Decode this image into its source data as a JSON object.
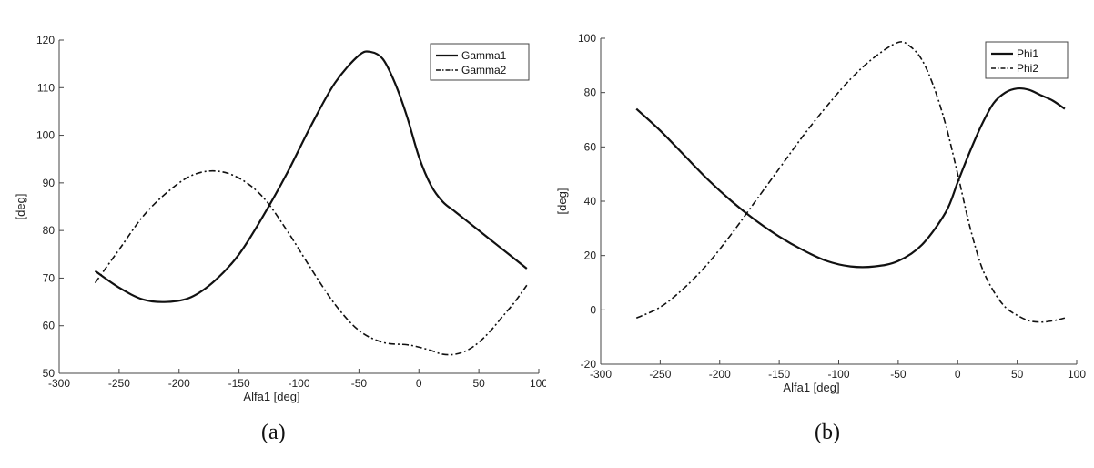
{
  "chart_data": [
    {
      "type": "line",
      "caption": "(a)",
      "xlabel": "Alfa1 [deg]",
      "ylabel": "[deg]",
      "xlim": [
        -300,
        100
      ],
      "ylim": [
        50,
        120
      ],
      "xticks": [
        -300,
        -250,
        -200,
        -150,
        -100,
        -50,
        0,
        50,
        100
      ],
      "yticks": [
        50,
        60,
        70,
        80,
        90,
        100,
        110,
        120
      ],
      "grid": false,
      "legend": "top-right",
      "series": [
        {
          "name": "Gamma1",
          "style": "solid",
          "x": [
            -270,
            -250,
            -230,
            -210,
            -190,
            -170,
            -150,
            -130,
            -110,
            -90,
            -70,
            -50,
            -40,
            -30,
            -20,
            -10,
            0,
            10,
            20,
            30,
            40,
            50,
            60,
            70,
            80,
            90
          ],
          "y": [
            71.5,
            68,
            65.5,
            65,
            66,
            69.5,
            75,
            83,
            92,
            102,
            111,
            116.8,
            117.5,
            116,
            111,
            104,
            95.5,
            89.5,
            86,
            84,
            82,
            80,
            78,
            76,
            74,
            72
          ]
        },
        {
          "name": "Gamma2",
          "style": "dashdot",
          "x": [
            -270,
            -250,
            -230,
            -210,
            -190,
            -170,
            -150,
            -130,
            -110,
            -90,
            -70,
            -50,
            -30,
            -10,
            0,
            10,
            20,
            30,
            40,
            50,
            60,
            70,
            80,
            90
          ],
          "y": [
            69,
            76,
            83,
            88,
            91.5,
            92.5,
            91,
            87,
            80,
            72,
            64.5,
            59,
            56.5,
            56,
            55.5,
            54.8,
            54,
            54,
            54.8,
            56.5,
            59,
            62,
            65,
            68.5
          ]
        }
      ]
    },
    {
      "type": "line",
      "caption": "(b)",
      "xlabel": "Alfa1 [deg]",
      "ylabel": "[deg]",
      "xlim": [
        -300,
        100
      ],
      "ylim": [
        -20,
        100
      ],
      "xticks": [
        -300,
        -250,
        -200,
        -150,
        -100,
        -50,
        0,
        50,
        100
      ],
      "yticks": [
        -20,
        0,
        20,
        40,
        60,
        80,
        100
      ],
      "grid": false,
      "legend": "top-right",
      "series": [
        {
          "name": "Phi1",
          "style": "solid",
          "x": [
            -270,
            -250,
            -230,
            -210,
            -190,
            -170,
            -150,
            -130,
            -110,
            -90,
            -70,
            -50,
            -30,
            -10,
            0,
            10,
            20,
            30,
            40,
            50,
            60,
            70,
            80,
            90
          ],
          "y": [
            74,
            66,
            57,
            48,
            40,
            33,
            27,
            22,
            18,
            16,
            16,
            18,
            24,
            36,
            47,
            58,
            68,
            76,
            80,
            81.5,
            81,
            79,
            77,
            74
          ]
        },
        {
          "name": "Phi2",
          "style": "dashdot",
          "x": [
            -270,
            -250,
            -230,
            -210,
            -190,
            -170,
            -150,
            -130,
            -110,
            -90,
            -70,
            -50,
            -40,
            -30,
            -20,
            -10,
            0,
            10,
            20,
            30,
            40,
            50,
            60,
            70,
            80,
            90
          ],
          "y": [
            -3,
            1,
            8,
            17,
            28,
            40,
            52,
            64,
            75,
            85,
            93,
            98.5,
            97,
            92,
            82,
            68,
            50,
            31,
            16,
            7,
            1,
            -2,
            -4,
            -4.5,
            -4,
            -3
          ]
        }
      ]
    }
  ]
}
